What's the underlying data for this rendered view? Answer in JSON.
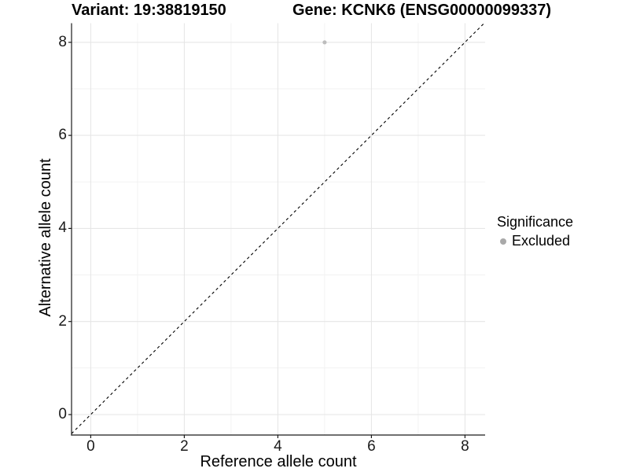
{
  "title": {
    "variant": "Variant: 19:38819150",
    "gene": "Gene: KCNK6 (ENSG00000099337)"
  },
  "x_axis": {
    "label": "Reference allele count"
  },
  "y_axis": {
    "label": "Alternative allele count"
  },
  "legend": {
    "title": "Significance",
    "items": [
      {
        "label": "Excluded",
        "color": "#a9a9a9"
      }
    ]
  },
  "colors": {
    "background": "#ffffff",
    "axis": "#1a1a1a",
    "tick_text": "#1a1a1a",
    "grid_major": "#e6e6e6",
    "grid_minor": "#f2f2f2",
    "point": "#bdbdbd",
    "reference_line": "#000000"
  },
  "chart_data": {
    "type": "scatter",
    "title": "Variant: 19:38819150    Gene: KCNK6 (ENSG00000099337)",
    "xlabel": "Reference allele count",
    "ylabel": "Alternative allele count",
    "xlim": [
      -0.41,
      8.43
    ],
    "ylim": [
      -0.44,
      8.41
    ],
    "x_ticks": [
      0,
      2,
      4,
      6,
      8
    ],
    "y_ticks": [
      0,
      2,
      4,
      6,
      8
    ],
    "x_minor": [
      1,
      3,
      5,
      7
    ],
    "y_minor": [
      1,
      3,
      5,
      7
    ],
    "grid": true,
    "legend_position": "right",
    "series": [
      {
        "name": "Excluded",
        "color": "#bdbdbd",
        "points": [
          {
            "x": 5,
            "y": 8
          }
        ]
      }
    ],
    "reference_line": {
      "kind": "identity",
      "equation": "y = x",
      "style": "dashed",
      "color": "#000000"
    }
  }
}
